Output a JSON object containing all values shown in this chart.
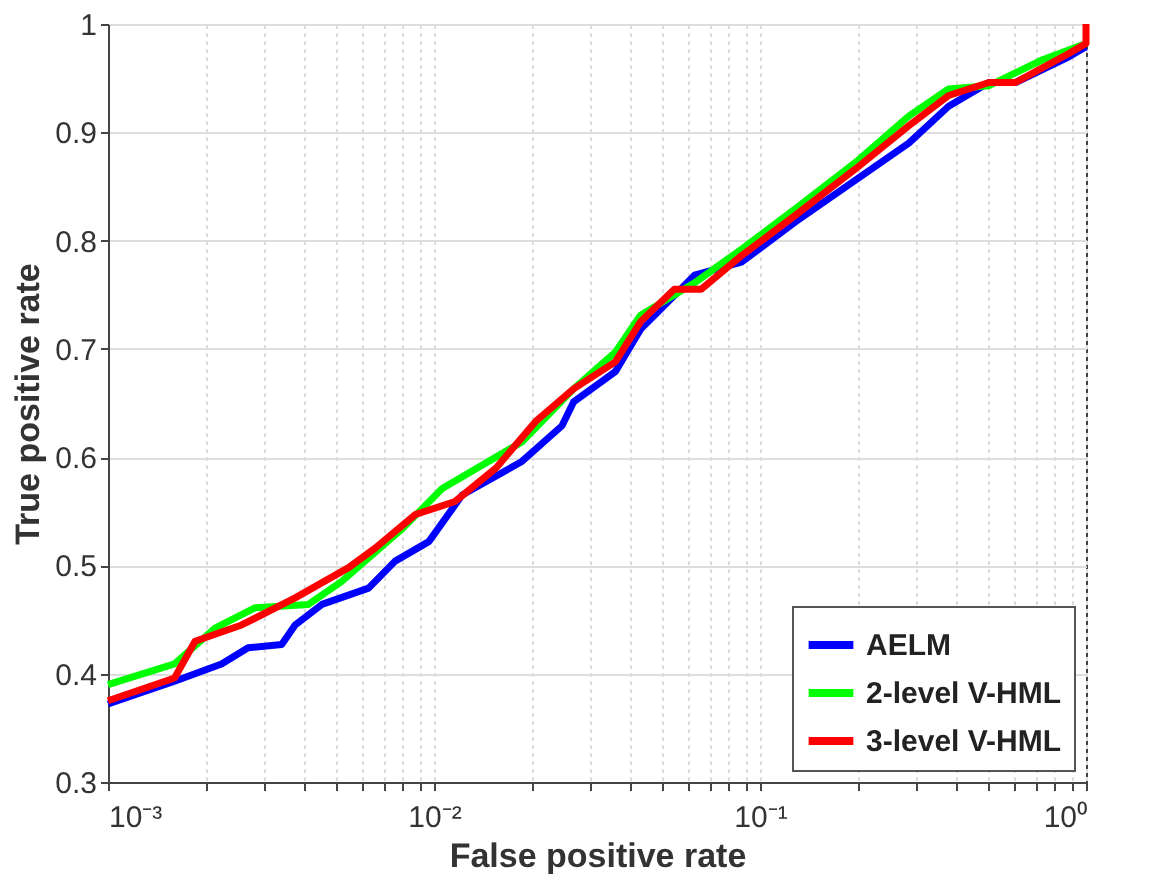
{
  "chart_data": {
    "type": "line",
    "xlabel": "False positive rate",
    "ylabel": "True positive rate",
    "log": "x",
    "grid": true,
    "legend": "bottom right",
    "line_style": "solid",
    "marker": "none",
    "xlim": [
      0.001,
      1
    ],
    "ylim": [
      0.3,
      1
    ],
    "xticks": [
      {
        "value": 0.001,
        "label": "10⁻³"
      },
      {
        "value": 0.002,
        "label": null
      },
      {
        "value": 0.003,
        "label": null
      },
      {
        "value": 0.004,
        "label": null
      },
      {
        "value": 0.005,
        "label": null
      },
      {
        "value": 0.006,
        "label": null
      },
      {
        "value": 0.007,
        "label": null
      },
      {
        "value": 0.008,
        "label": null
      },
      {
        "value": 0.009,
        "label": null
      },
      {
        "value": 0.01,
        "label": "10⁻²"
      },
      {
        "value": 0.02,
        "label": null
      },
      {
        "value": 0.03,
        "label": null
      },
      {
        "value": 0.04,
        "label": null
      },
      {
        "value": 0.05,
        "label": null
      },
      {
        "value": 0.06,
        "label": null
      },
      {
        "value": 0.07,
        "label": null
      },
      {
        "value": 0.08,
        "label": null
      },
      {
        "value": 0.09,
        "label": null
      },
      {
        "value": 0.1,
        "label": "10⁻¹"
      },
      {
        "value": 0.2,
        "label": null
      },
      {
        "value": 0.3,
        "label": null
      },
      {
        "value": 0.4,
        "label": null
      },
      {
        "value": 0.5,
        "label": null
      },
      {
        "value": 0.6,
        "label": null
      },
      {
        "value": 0.7,
        "label": null
      },
      {
        "value": 0.8,
        "label": null
      },
      {
        "value": 0.9,
        "label": null
      },
      {
        "value": 1,
        "label": "10⁰"
      }
    ],
    "yticks": [
      0.3,
      0.4,
      0.5,
      0.6,
      0.7,
      0.8,
      0.9,
      1
    ],
    "series": [
      {
        "name": "AELM",
        "color": "#0000ff",
        "x": [
          0.001,
          0.0016,
          0.00223,
          0.00269,
          0.00341,
          0.00375,
          0.00453,
          0.0063,
          0.0076,
          0.00964,
          0.0122,
          0.0186,
          0.0247,
          0.0268,
          0.036,
          0.043,
          0.063,
          0.0877,
          0.128,
          0.196,
          0.286,
          0.379,
          0.504,
          0.608,
          0.889,
          1
        ],
        "values": [
          0.372,
          0.393,
          0.409,
          0.424,
          0.427,
          0.445,
          0.464,
          0.479,
          0.504,
          0.522,
          0.565,
          0.596,
          0.629,
          0.651,
          0.679,
          0.718,
          0.768,
          0.78,
          0.817,
          null,
          0.89,
          0.924,
          0.946,
          0.946,
          0.97,
          0.979
        ]
      },
      {
        "name": "2-level V-HML",
        "color": "#00ff00",
        "x": [
          0.001,
          0.0016,
          0.00213,
          0.00283,
          0.00412,
          0.0052,
          0.008,
          0.0106,
          0.0186,
          0.0268,
          0.036,
          0.043,
          0.063,
          0.0877,
          0.128,
          0.196,
          0.286,
          0.379,
          0.504,
          0.736,
          1
        ],
        "values": [
          0.39,
          0.409,
          0.442,
          0.461,
          0.464,
          0.485,
          0.534,
          0.571,
          0.614,
          0.663,
          0.697,
          0.731,
          0.761,
          0.792,
          0.829,
          0.872,
          0.915,
          0.94,
          0.943,
          0.967,
          0.982
        ]
      },
      {
        "name": "3-level V-HML",
        "color": "#ff0000",
        "x": [
          0.001,
          0.0016,
          0.00185,
          0.00257,
          0.00375,
          0.00547,
          0.0066,
          0.00877,
          0.0116,
          0.0155,
          0.0205,
          0.0268,
          0.036,
          0.043,
          0.0546,
          0.066,
          0.0877,
          0.128,
          0.196,
          0.286,
          0.379,
          0.504,
          0.608,
          0.889,
          1,
          1
        ],
        "values": [
          0.375,
          0.396,
          0.43,
          0.445,
          0.47,
          0.498,
          0.516,
          0.547,
          0.559,
          0.59,
          0.633,
          0.663,
          0.688,
          0.725,
          0.755,
          0.755,
          0.786,
          0.823,
          0.866,
          0.906,
          0.934,
          0.946,
          0.946,
          0.973,
          0.982,
          1
        ]
      }
    ]
  }
}
